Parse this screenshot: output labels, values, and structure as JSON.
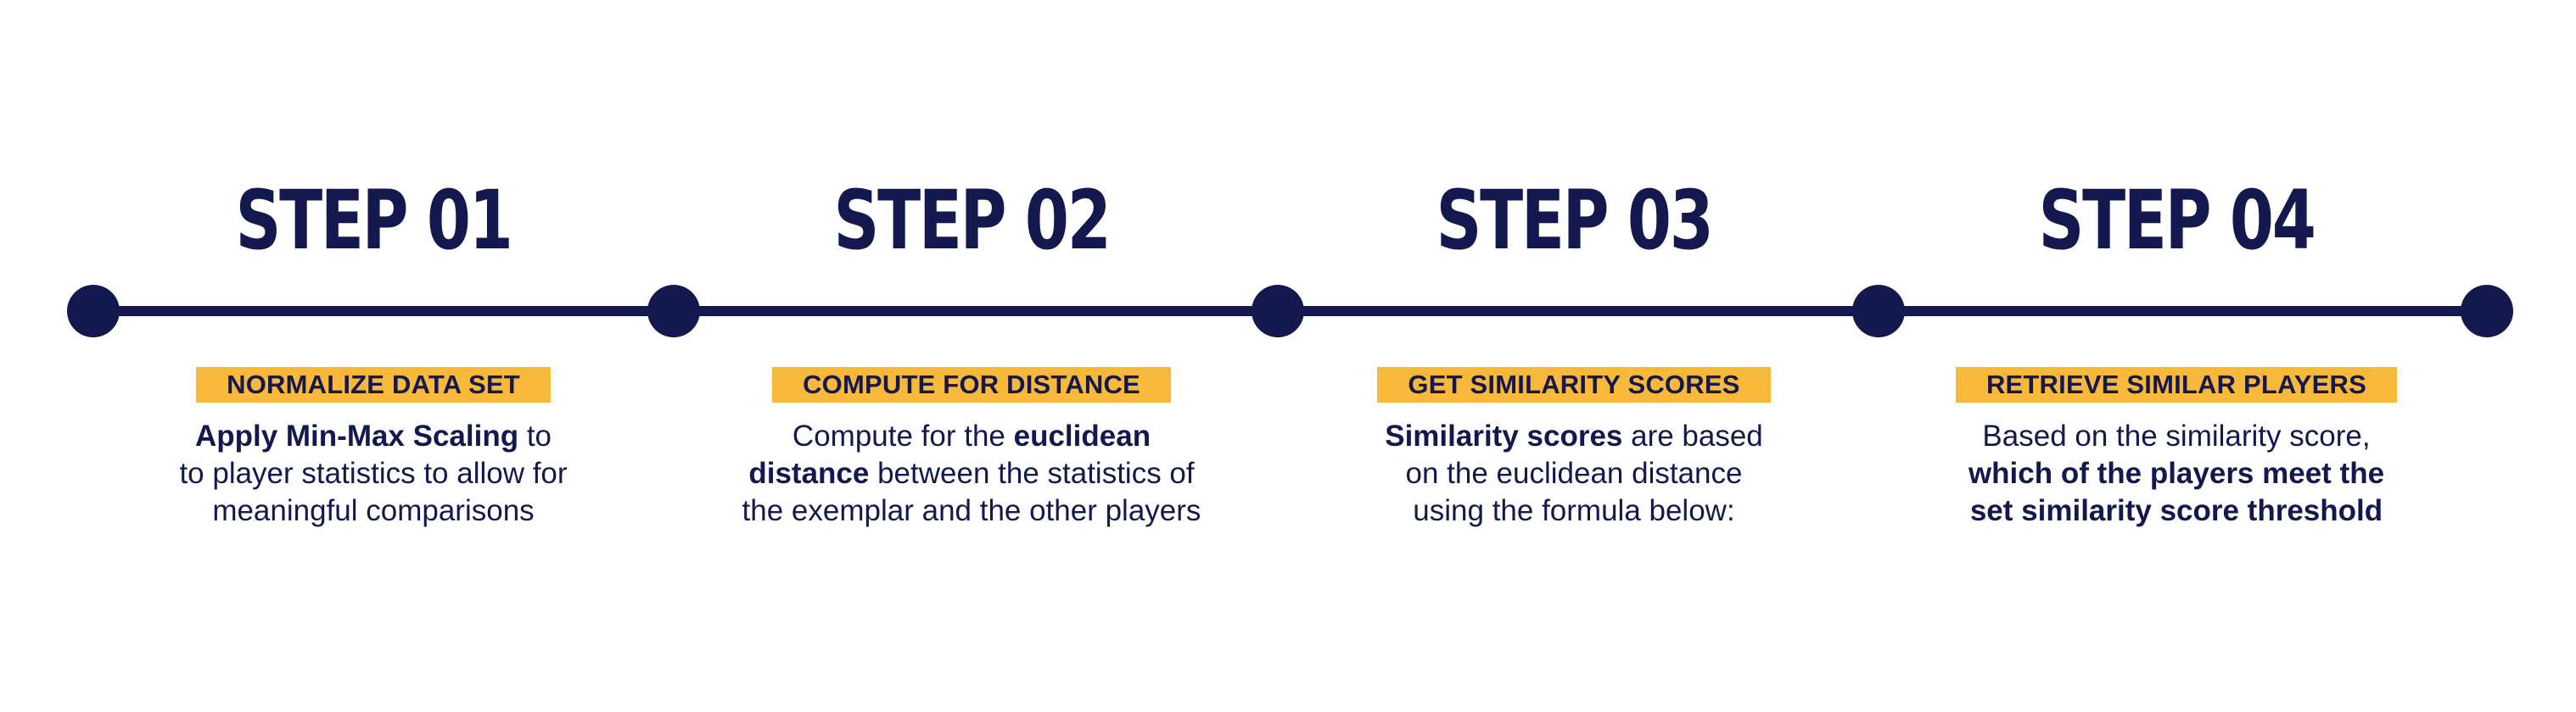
{
  "colors": {
    "navy": "#13194f",
    "accent": "#f8b93b",
    "background": "#ffffff"
  },
  "steps": [
    {
      "title": "STEP 01",
      "badge": "NORMALIZE DATA SET",
      "desc": {
        "l1_bold": "Apply Min-Max Scaling",
        "l1_rest": " to",
        "l2": "to player statistics to allow for",
        "l3": "meaningful comparisons"
      }
    },
    {
      "title": "STEP 02",
      "badge": "COMPUTE FOR DISTANCE",
      "desc": {
        "l1_text": "Compute for the ",
        "l1_bold": "euclidean",
        "l2_bold": "distance",
        "l2_rest": " between the statistics of",
        "l3": "the exemplar and the other players"
      }
    },
    {
      "title": "STEP 03",
      "badge": "GET SIMILARITY SCORES",
      "desc": {
        "l1_bold": "Similarity scores",
        "l1_rest": " are based",
        "l2": "on the euclidean distance",
        "l3": "using the formula below:"
      }
    },
    {
      "title": "STEP 04",
      "badge": "RETRIEVE SIMILAR PLAYERS",
      "desc": {
        "l1": "Based on the similarity score,",
        "l2_bold": "which of the players meet the",
        "l3_bold": "set similarity score threshold"
      }
    }
  ]
}
